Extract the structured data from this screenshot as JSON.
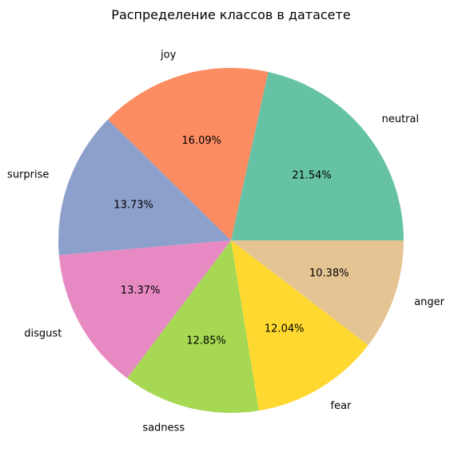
{
  "chart_data": {
    "type": "pie",
    "title": "Распределение классов в датасете",
    "categories": [
      "neutral",
      "joy",
      "surprise",
      "disgust",
      "sadness",
      "fear",
      "anger"
    ],
    "values": [
      21.54,
      16.09,
      13.73,
      13.37,
      12.85,
      12.04,
      10.38
    ],
    "value_labels": [
      "21.54%",
      "16.09%",
      "13.73%",
      "13.37%",
      "12.85%",
      "12.04%",
      "10.38%"
    ],
    "colors": [
      "#66c2a5",
      "#fc8d62",
      "#8da0cb",
      "#e78ac3",
      "#a6d854",
      "#ffd92f",
      "#e5c494"
    ],
    "start_angle_deg": 0,
    "direction": "counterclockwise",
    "legend": "none"
  }
}
